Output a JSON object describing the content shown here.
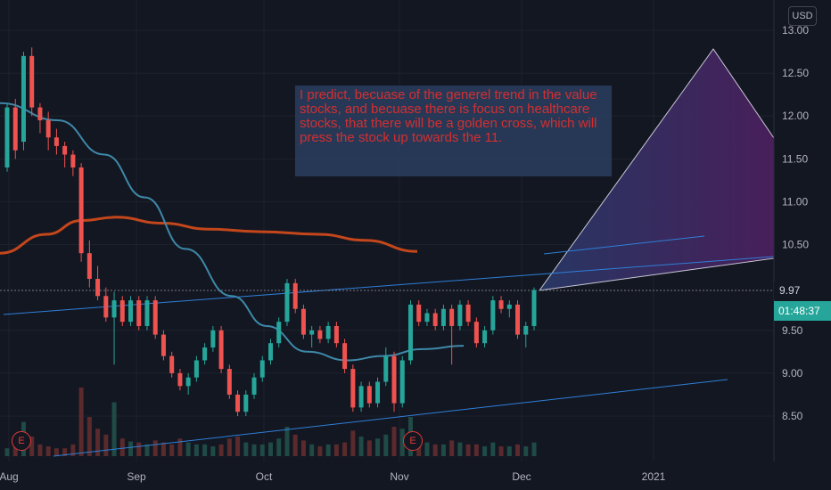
{
  "chart_data": {
    "type": "candlestick",
    "currency": "USD",
    "y_ticks": [
      "13.00",
      "12.50",
      "12.00",
      "11.50",
      "11.00",
      "10.50",
      "9.50",
      "9.00",
      "8.50"
    ],
    "x_ticks": [
      "Aug",
      "Sep",
      "Oct",
      "Nov",
      "Dec",
      "2021"
    ],
    "ylim": [
      8.0,
      13.1
    ],
    "last_price": "9.97",
    "countdown": "01:48:37",
    "earnings_markers": [
      "E",
      "E"
    ],
    "annotation": "I predict, becuase of the generel trend in the value stocks, and becuase there is focus on healthcare stocks, that there will be a golden cross, which will press the stock up towards the 11.",
    "candles": [
      [
        11.4,
        12.15,
        11.35,
        12.1
      ],
      [
        12.1,
        12.2,
        11.5,
        11.6
      ],
      [
        11.7,
        12.75,
        11.6,
        12.7
      ],
      [
        12.7,
        12.8,
        12.0,
        12.1
      ],
      [
        12.1,
        12.15,
        11.8,
        11.95
      ],
      [
        11.95,
        12.05,
        11.6,
        11.75
      ],
      [
        11.75,
        11.85,
        11.55,
        11.65
      ],
      [
        11.65,
        11.7,
        11.4,
        11.55
      ],
      [
        11.55,
        11.6,
        11.3,
        11.4
      ],
      [
        11.4,
        11.45,
        10.3,
        10.4
      ],
      [
        10.4,
        10.55,
        10.0,
        10.1
      ],
      [
        10.1,
        10.25,
        9.85,
        9.9
      ],
      [
        9.9,
        10.0,
        9.6,
        9.65
      ],
      [
        9.65,
        9.95,
        9.1,
        9.85
      ],
      [
        9.85,
        9.9,
        9.55,
        9.6
      ],
      [
        9.6,
        9.9,
        9.55,
        9.85
      ],
      [
        9.85,
        9.9,
        9.5,
        9.55
      ],
      [
        9.55,
        9.9,
        9.5,
        9.85
      ],
      [
        9.85,
        9.9,
        9.4,
        9.45
      ],
      [
        9.45,
        9.5,
        9.15,
        9.2
      ],
      [
        9.2,
        9.25,
        8.95,
        9.0
      ],
      [
        9.0,
        9.05,
        8.8,
        8.85
      ],
      [
        8.85,
        9.0,
        8.75,
        8.95
      ],
      [
        8.95,
        9.2,
        8.9,
        9.15
      ],
      [
        9.15,
        9.35,
        9.1,
        9.3
      ],
      [
        9.3,
        9.55,
        9.25,
        9.5
      ],
      [
        9.5,
        9.55,
        9.0,
        9.05
      ],
      [
        9.05,
        9.1,
        8.7,
        8.75
      ],
      [
        8.75,
        8.8,
        8.5,
        8.55
      ],
      [
        8.55,
        8.8,
        8.5,
        8.75
      ],
      [
        8.75,
        9.0,
        8.7,
        8.95
      ],
      [
        8.95,
        9.2,
        8.9,
        9.15
      ],
      [
        9.15,
        9.4,
        9.1,
        9.35
      ],
      [
        9.35,
        9.65,
        9.3,
        9.6
      ],
      [
        9.6,
        10.1,
        9.55,
        10.05
      ],
      [
        10.05,
        10.1,
        9.7,
        9.75
      ],
      [
        9.75,
        9.8,
        9.4,
        9.45
      ],
      [
        9.45,
        9.55,
        9.3,
        9.5
      ],
      [
        9.5,
        9.55,
        9.35,
        9.4
      ],
      [
        9.4,
        9.6,
        9.35,
        9.55
      ],
      [
        9.55,
        9.6,
        9.3,
        9.35
      ],
      [
        9.35,
        9.4,
        9.0,
        9.05
      ],
      [
        9.05,
        9.1,
        8.55,
        8.6
      ],
      [
        8.6,
        8.9,
        8.55,
        8.85
      ],
      [
        8.85,
        8.9,
        8.6,
        8.65
      ],
      [
        8.65,
        8.95,
        8.6,
        8.9
      ],
      [
        8.9,
        9.3,
        8.85,
        9.2
      ],
      [
        9.2,
        9.25,
        8.55,
        8.65
      ],
      [
        8.65,
        9.2,
        8.6,
        9.15
      ],
      [
        9.15,
        9.85,
        9.1,
        9.8
      ],
      [
        9.8,
        9.85,
        9.55,
        9.6
      ],
      [
        9.6,
        9.75,
        9.55,
        9.7
      ],
      [
        9.7,
        9.75,
        9.5,
        9.55
      ],
      [
        9.55,
        9.8,
        9.5,
        9.75
      ],
      [
        9.75,
        9.8,
        9.1,
        9.55
      ],
      [
        9.55,
        9.85,
        9.5,
        9.8
      ],
      [
        9.8,
        9.85,
        9.55,
        9.6
      ],
      [
        9.6,
        9.65,
        9.3,
        9.35
      ],
      [
        9.35,
        9.55,
        9.3,
        9.5
      ],
      [
        9.5,
        9.9,
        9.45,
        9.85
      ],
      [
        9.85,
        9.9,
        9.7,
        9.75
      ],
      [
        9.75,
        9.85,
        9.65,
        9.8
      ],
      [
        9.8,
        9.85,
        9.4,
        9.45
      ],
      [
        9.45,
        9.6,
        9.3,
        9.55
      ],
      [
        9.55,
        10.0,
        9.5,
        9.97
      ]
    ],
    "volume_pct": [
      8,
      10,
      35,
      20,
      12,
      10,
      8,
      8,
      12,
      70,
      40,
      28,
      22,
      55,
      18,
      15,
      14,
      12,
      16,
      14,
      12,
      18,
      14,
      12,
      12,
      10,
      12,
      18,
      20,
      14,
      12,
      12,
      14,
      18,
      30,
      22,
      16,
      12,
      10,
      12,
      12,
      14,
      26,
      20,
      16,
      18,
      22,
      30,
      28,
      40,
      18,
      14,
      12,
      12,
      16,
      14,
      12,
      12,
      10,
      14,
      10,
      10,
      12,
      10,
      14
    ],
    "ma_short": [
      [
        0,
        12.15
      ],
      [
        0.1,
        11.95
      ],
      [
        0.18,
        11.55
      ],
      [
        0.25,
        11.05
      ],
      [
        0.32,
        10.45
      ],
      [
        0.4,
        9.9
      ],
      [
        0.46,
        9.55
      ],
      [
        0.53,
        9.25
      ],
      [
        0.6,
        9.15
      ],
      [
        0.66,
        9.2
      ],
      [
        0.73,
        9.28
      ],
      [
        0.8,
        9.32
      ]
    ],
    "ma_long": [
      [
        0,
        10.4
      ],
      [
        0.08,
        10.62
      ],
      [
        0.14,
        10.78
      ],
      [
        0.2,
        10.82
      ],
      [
        0.28,
        10.75
      ],
      [
        0.36,
        10.68
      ],
      [
        0.45,
        10.65
      ],
      [
        0.55,
        10.62
      ],
      [
        0.63,
        10.55
      ],
      [
        0.72,
        10.42
      ]
    ]
  }
}
